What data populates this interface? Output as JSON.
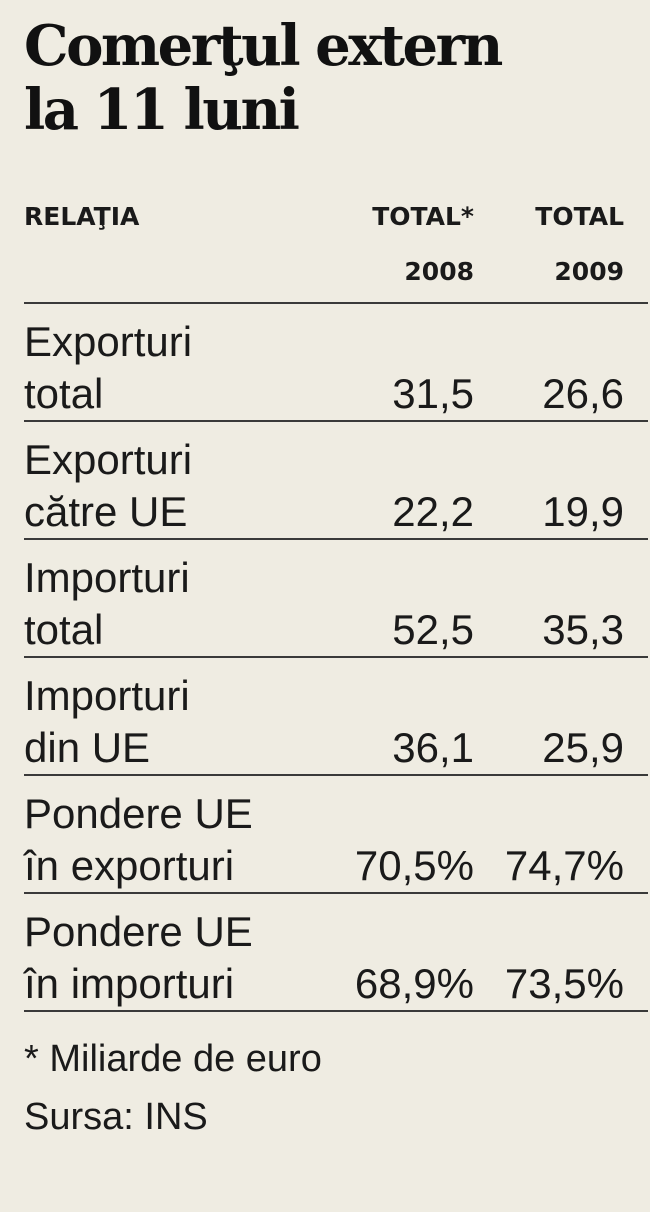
{
  "title": {
    "line1": "Comerţul extern",
    "line2": "la 11 luni"
  },
  "chart_data": {
    "type": "table",
    "columns": {
      "relatia": "RELAŢIA",
      "c2008_line1": "TOTAL*",
      "c2008_line2": "2008",
      "c2009_line1": "TOTAL",
      "c2009_line2": "2009"
    },
    "rows": [
      {
        "label_line1": "Exporturi",
        "label_line2": "total",
        "v2008": "31,5",
        "v2009": "26,6"
      },
      {
        "label_line1": "Exporturi",
        "label_line2": "către UE",
        "v2008": "22,2",
        "v2009": "19,9"
      },
      {
        "label_line1": "Importuri",
        "label_line2": "total",
        "v2008": "52,5",
        "v2009": "35,3"
      },
      {
        "label_line1": "Importuri",
        "label_line2": "din UE",
        "v2008": "36,1",
        "v2009": "25,9"
      },
      {
        "label_line1": "Pondere UE",
        "label_line2": "în exporturi",
        "v2008": "70,5%",
        "v2009": "74,7%"
      },
      {
        "label_line1": "Pondere UE",
        "label_line2": "în importuri",
        "v2008": "68,9%",
        "v2009": "73,5%"
      }
    ]
  },
  "notes": {
    "footnote": "* Miliarde de euro",
    "source": "Sursa: INS"
  }
}
